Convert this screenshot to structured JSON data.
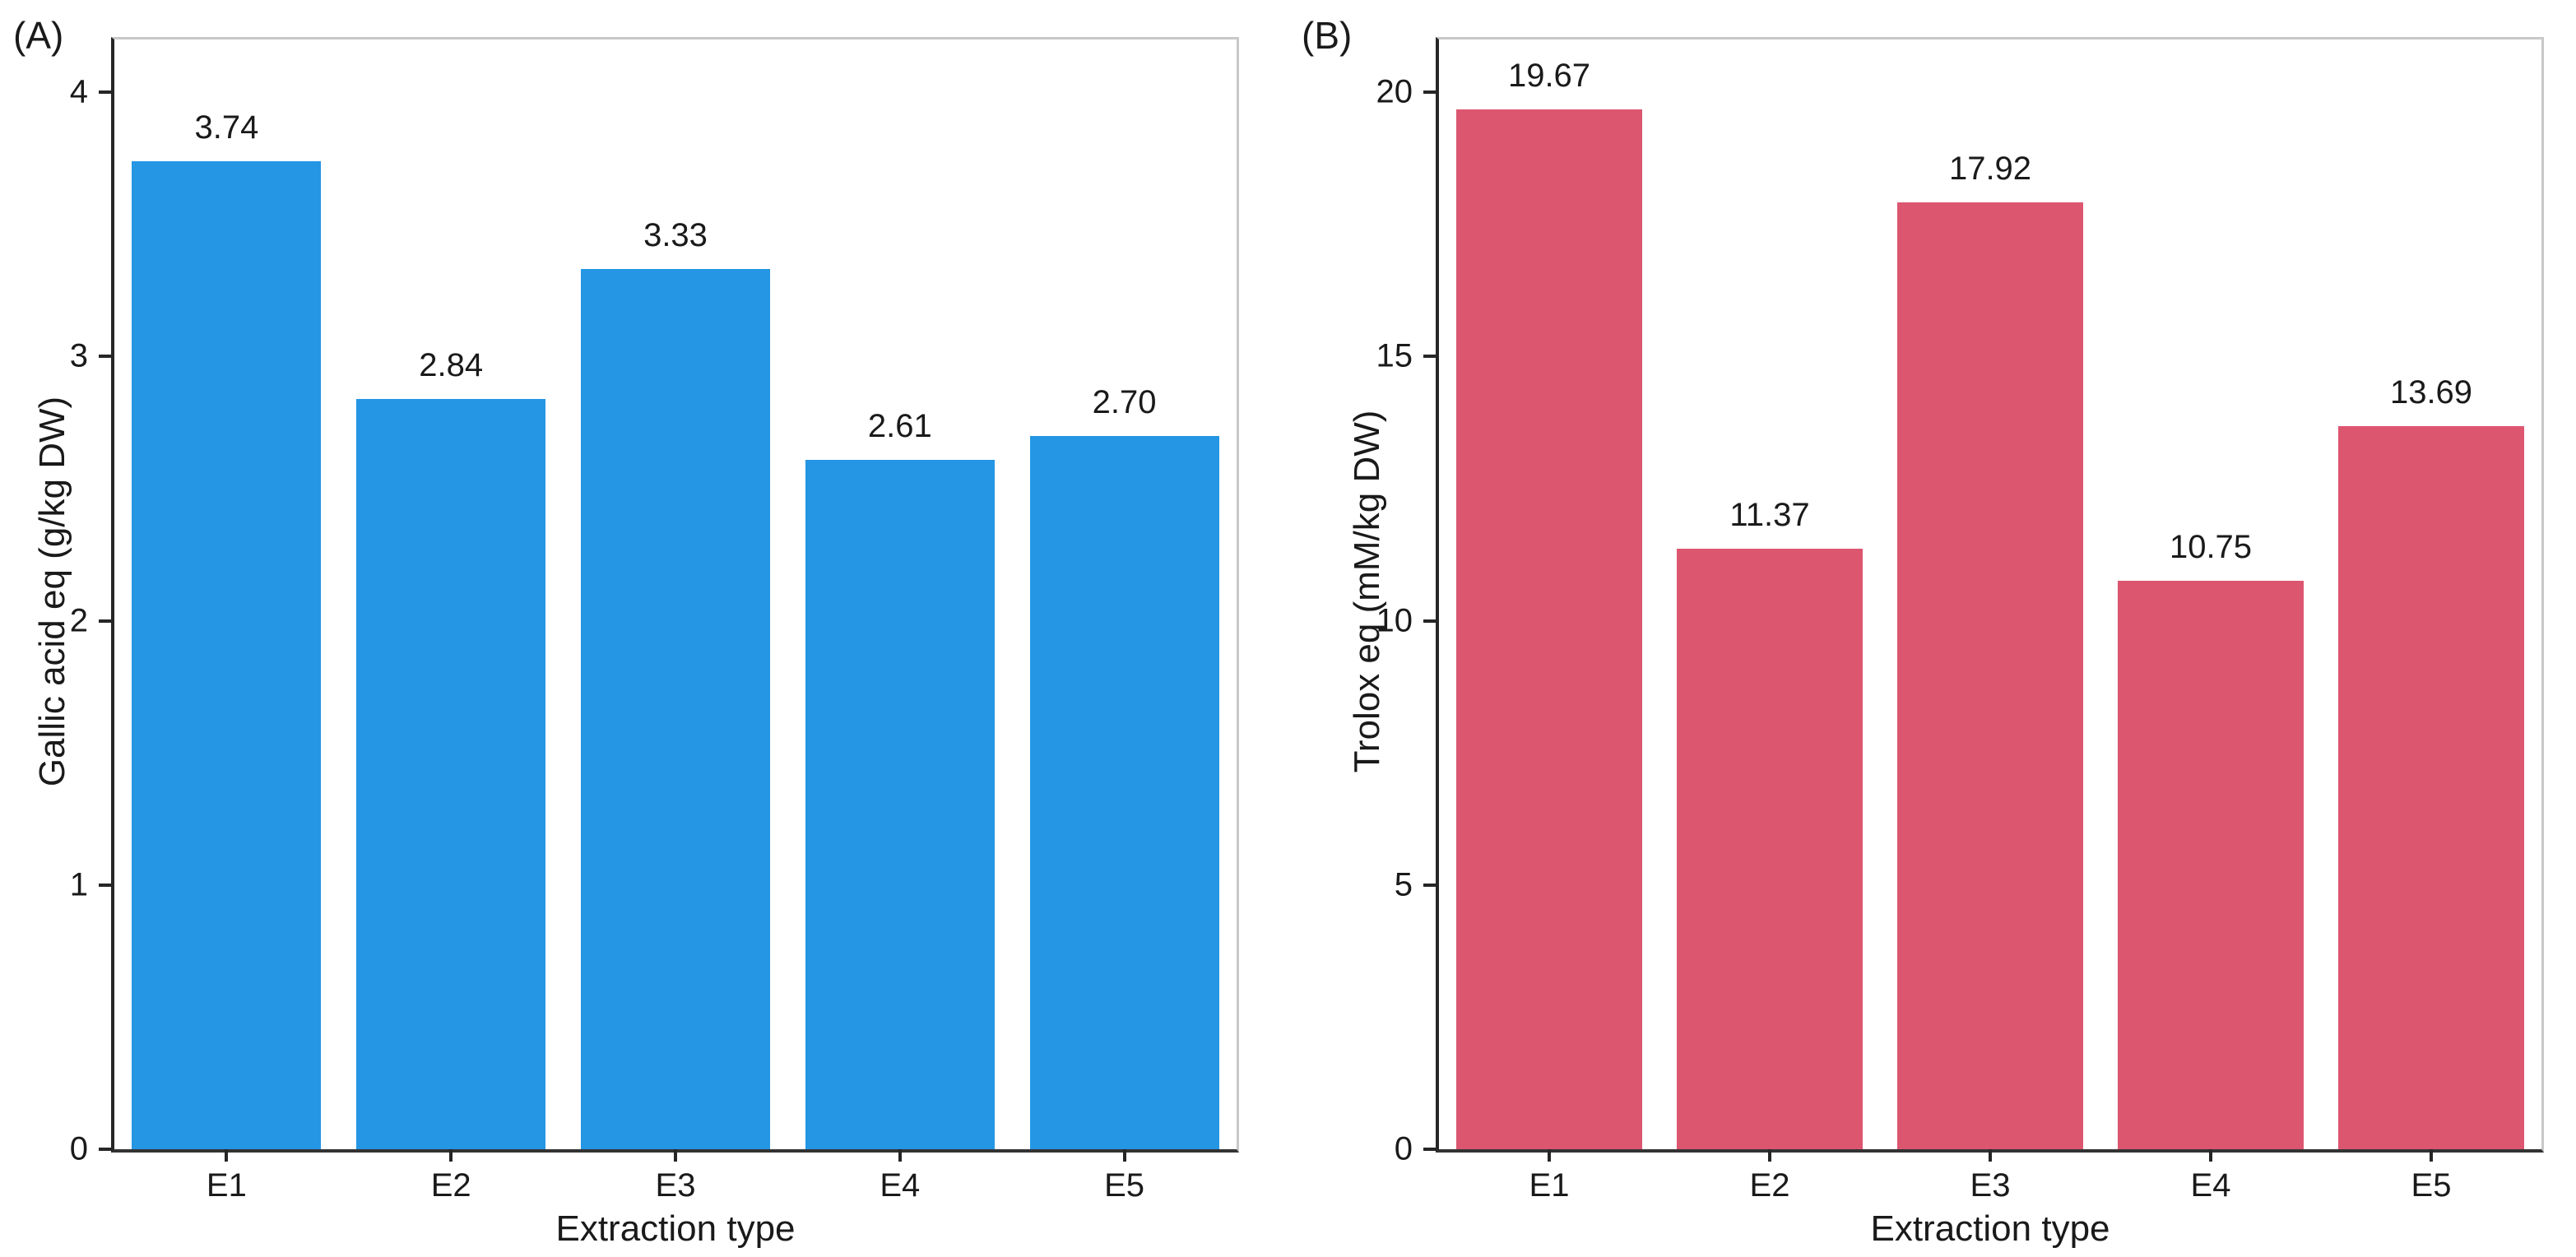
{
  "figure": {
    "background": "#ffffff",
    "axis_color": "#262626",
    "box_color": "#c8c8c8"
  },
  "chart_data": [
    {
      "type": "bar",
      "panel_label": "(A)",
      "categories": [
        "E1",
        "E2",
        "E3",
        "E4",
        "E5"
      ],
      "values": [
        3.74,
        2.84,
        3.33,
        2.61,
        2.7
      ],
      "value_labels": [
        "3.74",
        "2.84",
        "3.33",
        "2.61",
        "2.70"
      ],
      "xlabel": "Extraction type",
      "ylabel": "Gallic acid eq (g/kg DW)",
      "yticks": [
        0,
        1,
        2,
        3,
        4
      ],
      "ytick_labels": [
        "0",
        "1",
        "2",
        "3",
        "4"
      ],
      "ylim": [
        0,
        4.2
      ],
      "bar_color": "#2496E4",
      "grid": false,
      "legend": null
    },
    {
      "type": "bar",
      "panel_label": "(B)",
      "categories": [
        "E1",
        "E2",
        "E3",
        "E4",
        "E5"
      ],
      "values": [
        19.67,
        11.37,
        17.92,
        10.75,
        13.69
      ],
      "value_labels": [
        "19.67",
        "11.37",
        "17.92",
        "10.75",
        "13.69"
      ],
      "xlabel": "Extraction type",
      "ylabel": "Trolox eq (mM/kg DW)",
      "yticks": [
        0,
        5,
        10,
        15,
        20
      ],
      "ytick_labels": [
        "0",
        "5",
        "10",
        "15",
        "20"
      ],
      "ylim": [
        0,
        21
      ],
      "bar_color": "#DC5670",
      "grid": false,
      "legend": null
    }
  ]
}
